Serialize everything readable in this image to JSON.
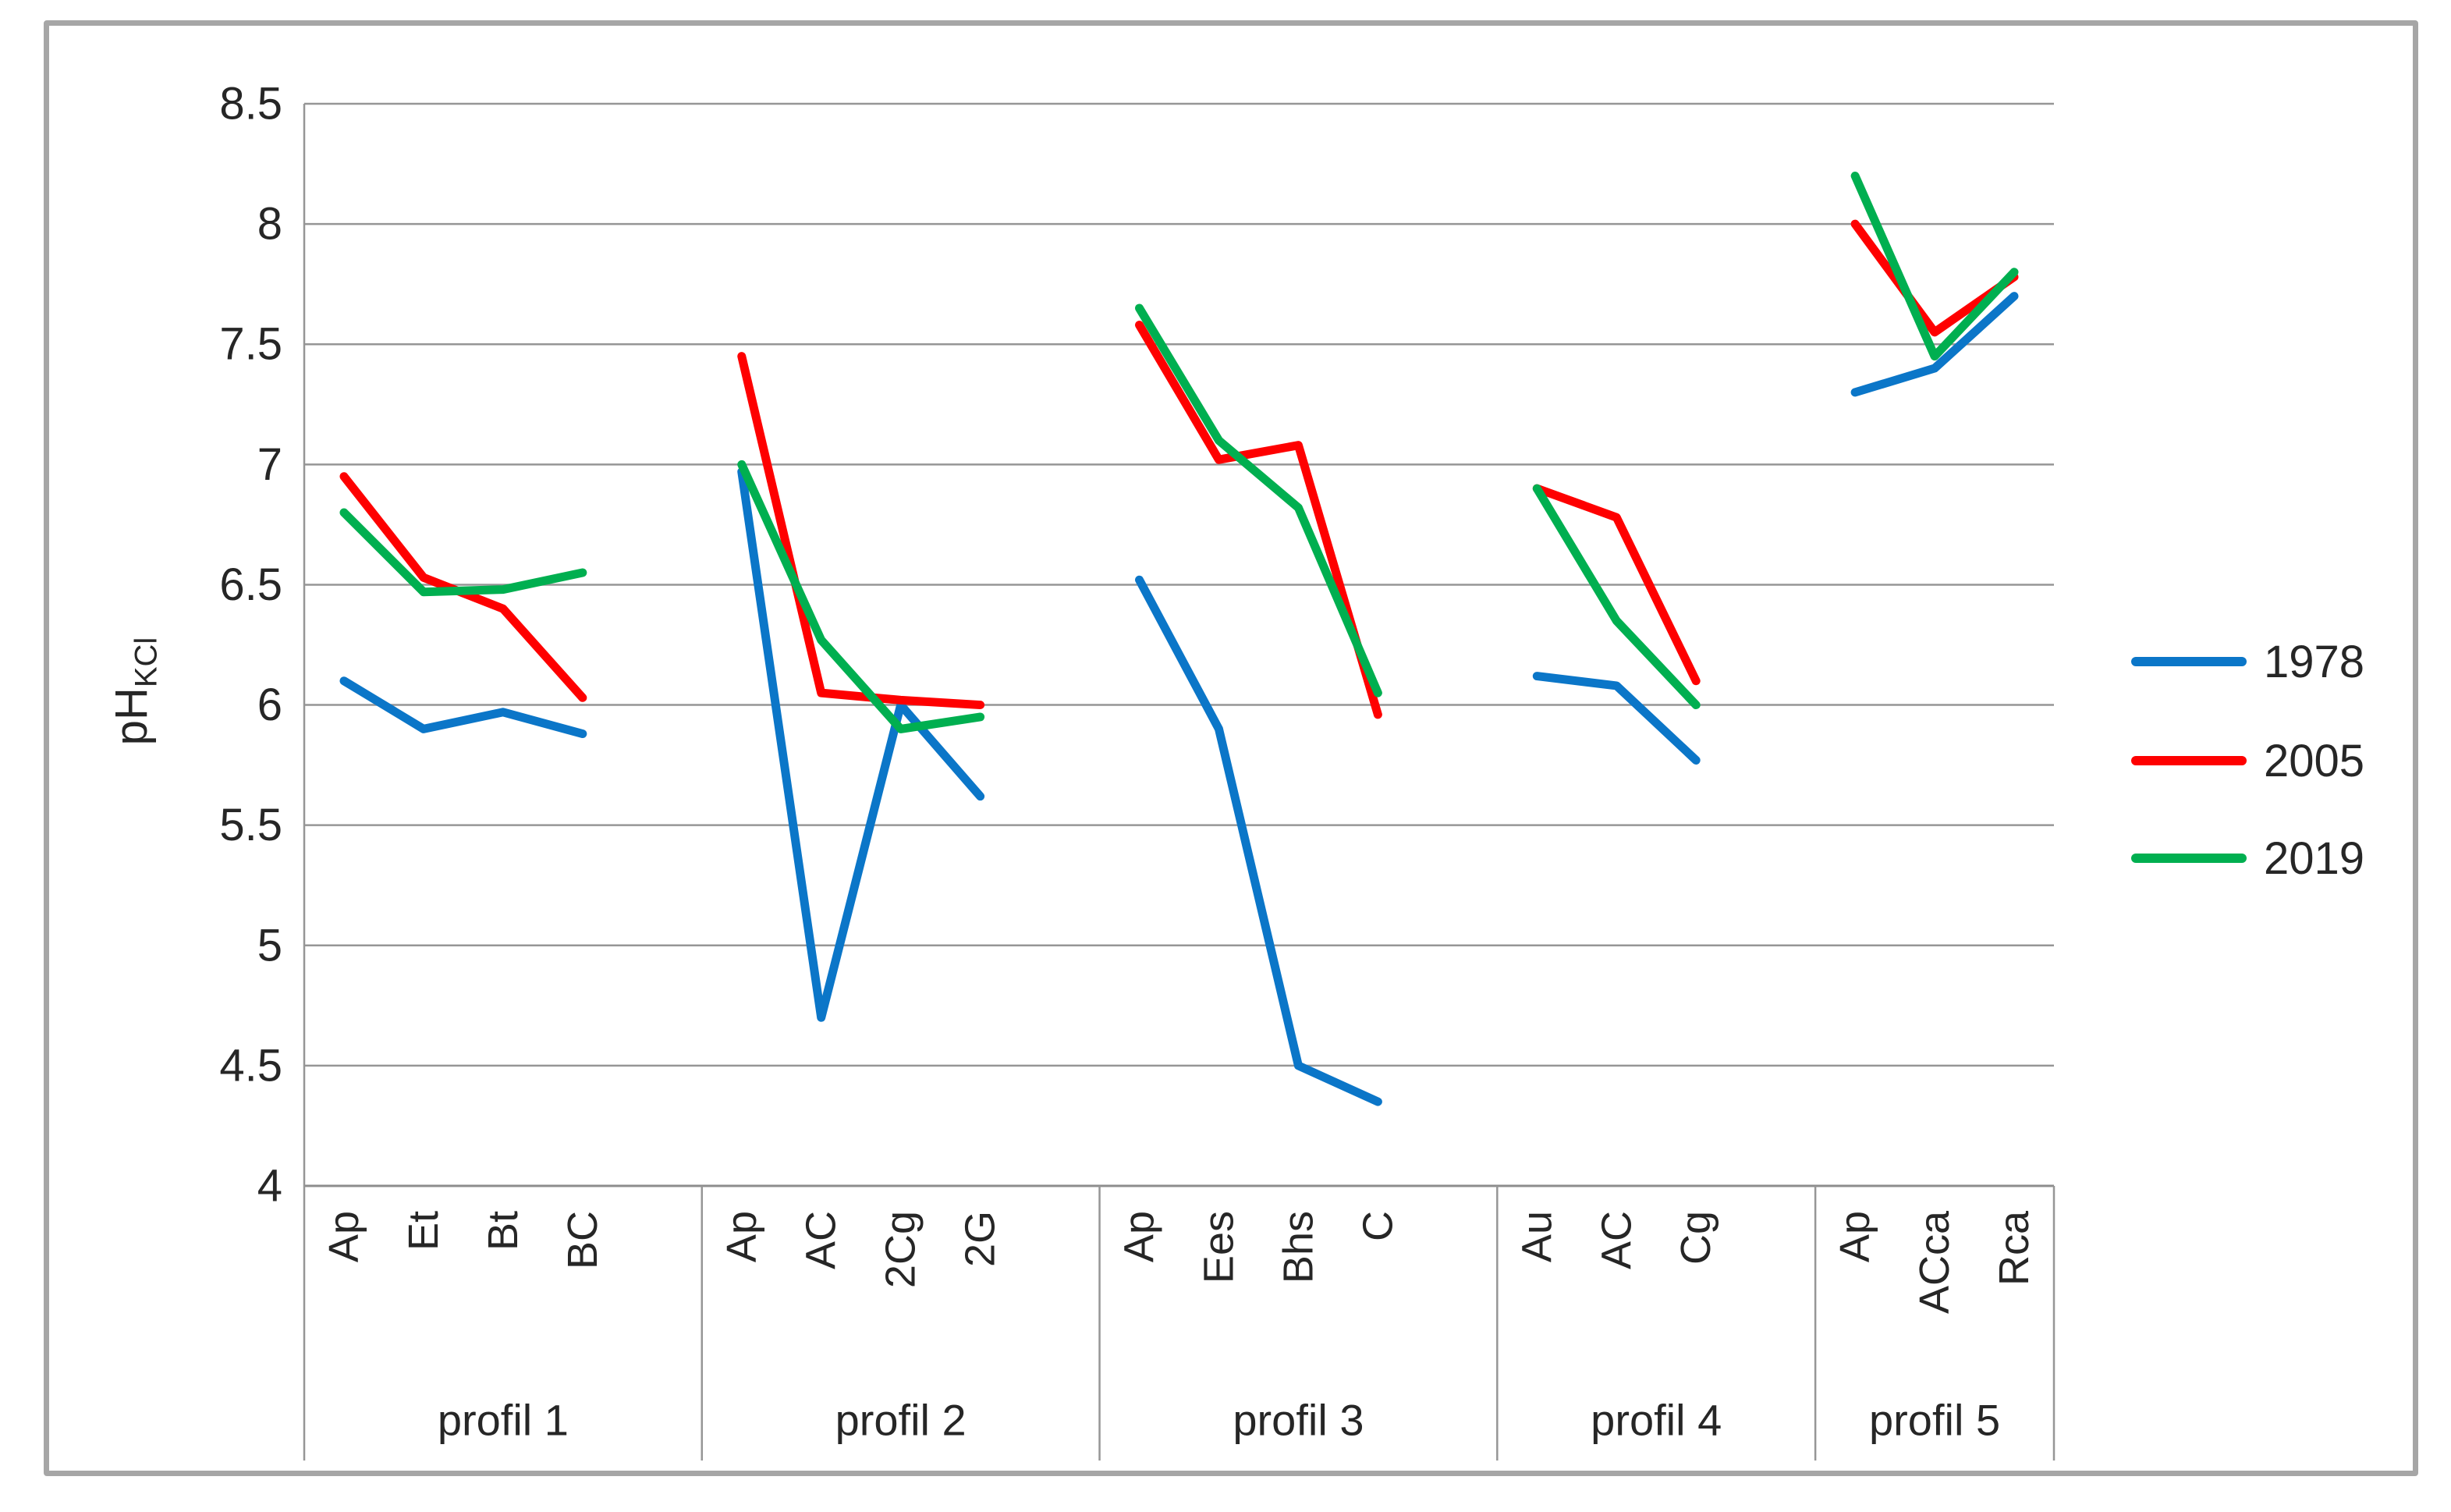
{
  "style": {
    "grid_color": "#969696",
    "axis_line_color": "#8d8d8d",
    "frame_border_color": "#a6a6a6",
    "text_color": "#262626",
    "background": "#ffffff"
  },
  "chart_data": {
    "type": "line",
    "title": "",
    "ylabel": "pH",
    "ylabel_sub": "KCl",
    "xlabel": "",
    "ylim": [
      4,
      8.5
    ],
    "ytick_step": 0.5,
    "y_tick_labels": [
      "8.5",
      "8",
      "7.5",
      "7",
      "6.5",
      "6",
      "5.5",
      "5",
      "4.5",
      "4"
    ],
    "grid": true,
    "legend_position": "right",
    "groups": [
      {
        "label": "profil 1",
        "categories": [
          "Ap",
          "Et",
          "Bt",
          "BC"
        ]
      },
      {
        "label": "profil 2",
        "categories": [
          "Ap",
          "AC",
          "2Cg",
          "2G"
        ]
      },
      {
        "label": "profil 3",
        "categories": [
          "Ap",
          "Ees",
          "Bhs",
          "C"
        ]
      },
      {
        "label": "profil 4",
        "categories": [
          "Au",
          "AC",
          "Cg"
        ]
      },
      {
        "label": "profil 5",
        "categories": [
          "Ap",
          "ACca",
          "Rca"
        ]
      }
    ],
    "series": [
      {
        "name": "1978",
        "color": "#0b76c8",
        "values": [
          [
            6.1,
            5.9,
            5.97,
            5.88
          ],
          [
            6.97,
            4.7,
            6.0,
            5.62
          ],
          [
            6.52,
            5.9,
            4.5,
            4.35
          ],
          [
            6.12,
            6.08,
            5.77
          ],
          [
            7.3,
            7.4,
            7.7
          ]
        ]
      },
      {
        "name": "2005",
        "color": "#fe0000",
        "values": [
          [
            6.95,
            6.53,
            6.4,
            6.03
          ],
          [
            7.45,
            6.05,
            6.02,
            6.0
          ],
          [
            7.58,
            7.02,
            7.08,
            5.96
          ],
          [
            6.9,
            6.78,
            6.1
          ],
          [
            8.0,
            7.55,
            7.78
          ]
        ]
      },
      {
        "name": "2019",
        "color": "#00af50",
        "values": [
          [
            6.8,
            6.47,
            6.48,
            6.55
          ],
          [
            7.0,
            6.27,
            5.9,
            5.95
          ],
          [
            7.65,
            7.1,
            6.82,
            6.05
          ],
          [
            6.9,
            6.35,
            6.0
          ],
          [
            8.2,
            7.45,
            7.8
          ]
        ]
      }
    ]
  }
}
